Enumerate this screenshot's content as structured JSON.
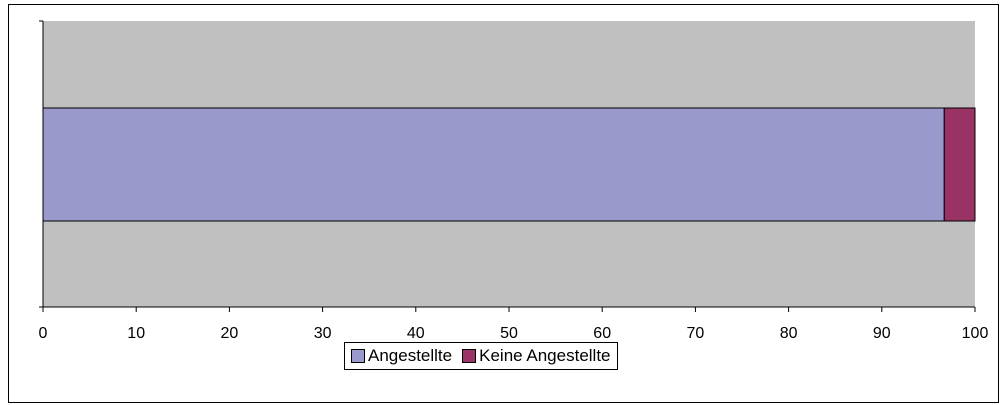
{
  "chart_data": {
    "type": "bar",
    "orientation": "horizontal",
    "stacked": true,
    "title": "",
    "xlabel": "",
    "ylabel": "",
    "categories": [
      ""
    ],
    "xlim": [
      0,
      100
    ],
    "xticks": [
      0,
      10,
      20,
      30,
      40,
      50,
      60,
      70,
      80,
      90,
      100
    ],
    "grid": false,
    "legend_position": "bottom",
    "plot_background": "#c0c0c0",
    "series": [
      {
        "name": "Angestellte",
        "values": [
          96.7
        ],
        "color": "#9999cc"
      },
      {
        "name": "Keine Angestellte",
        "values": [
          3.3
        ],
        "color": "#993366"
      }
    ]
  }
}
